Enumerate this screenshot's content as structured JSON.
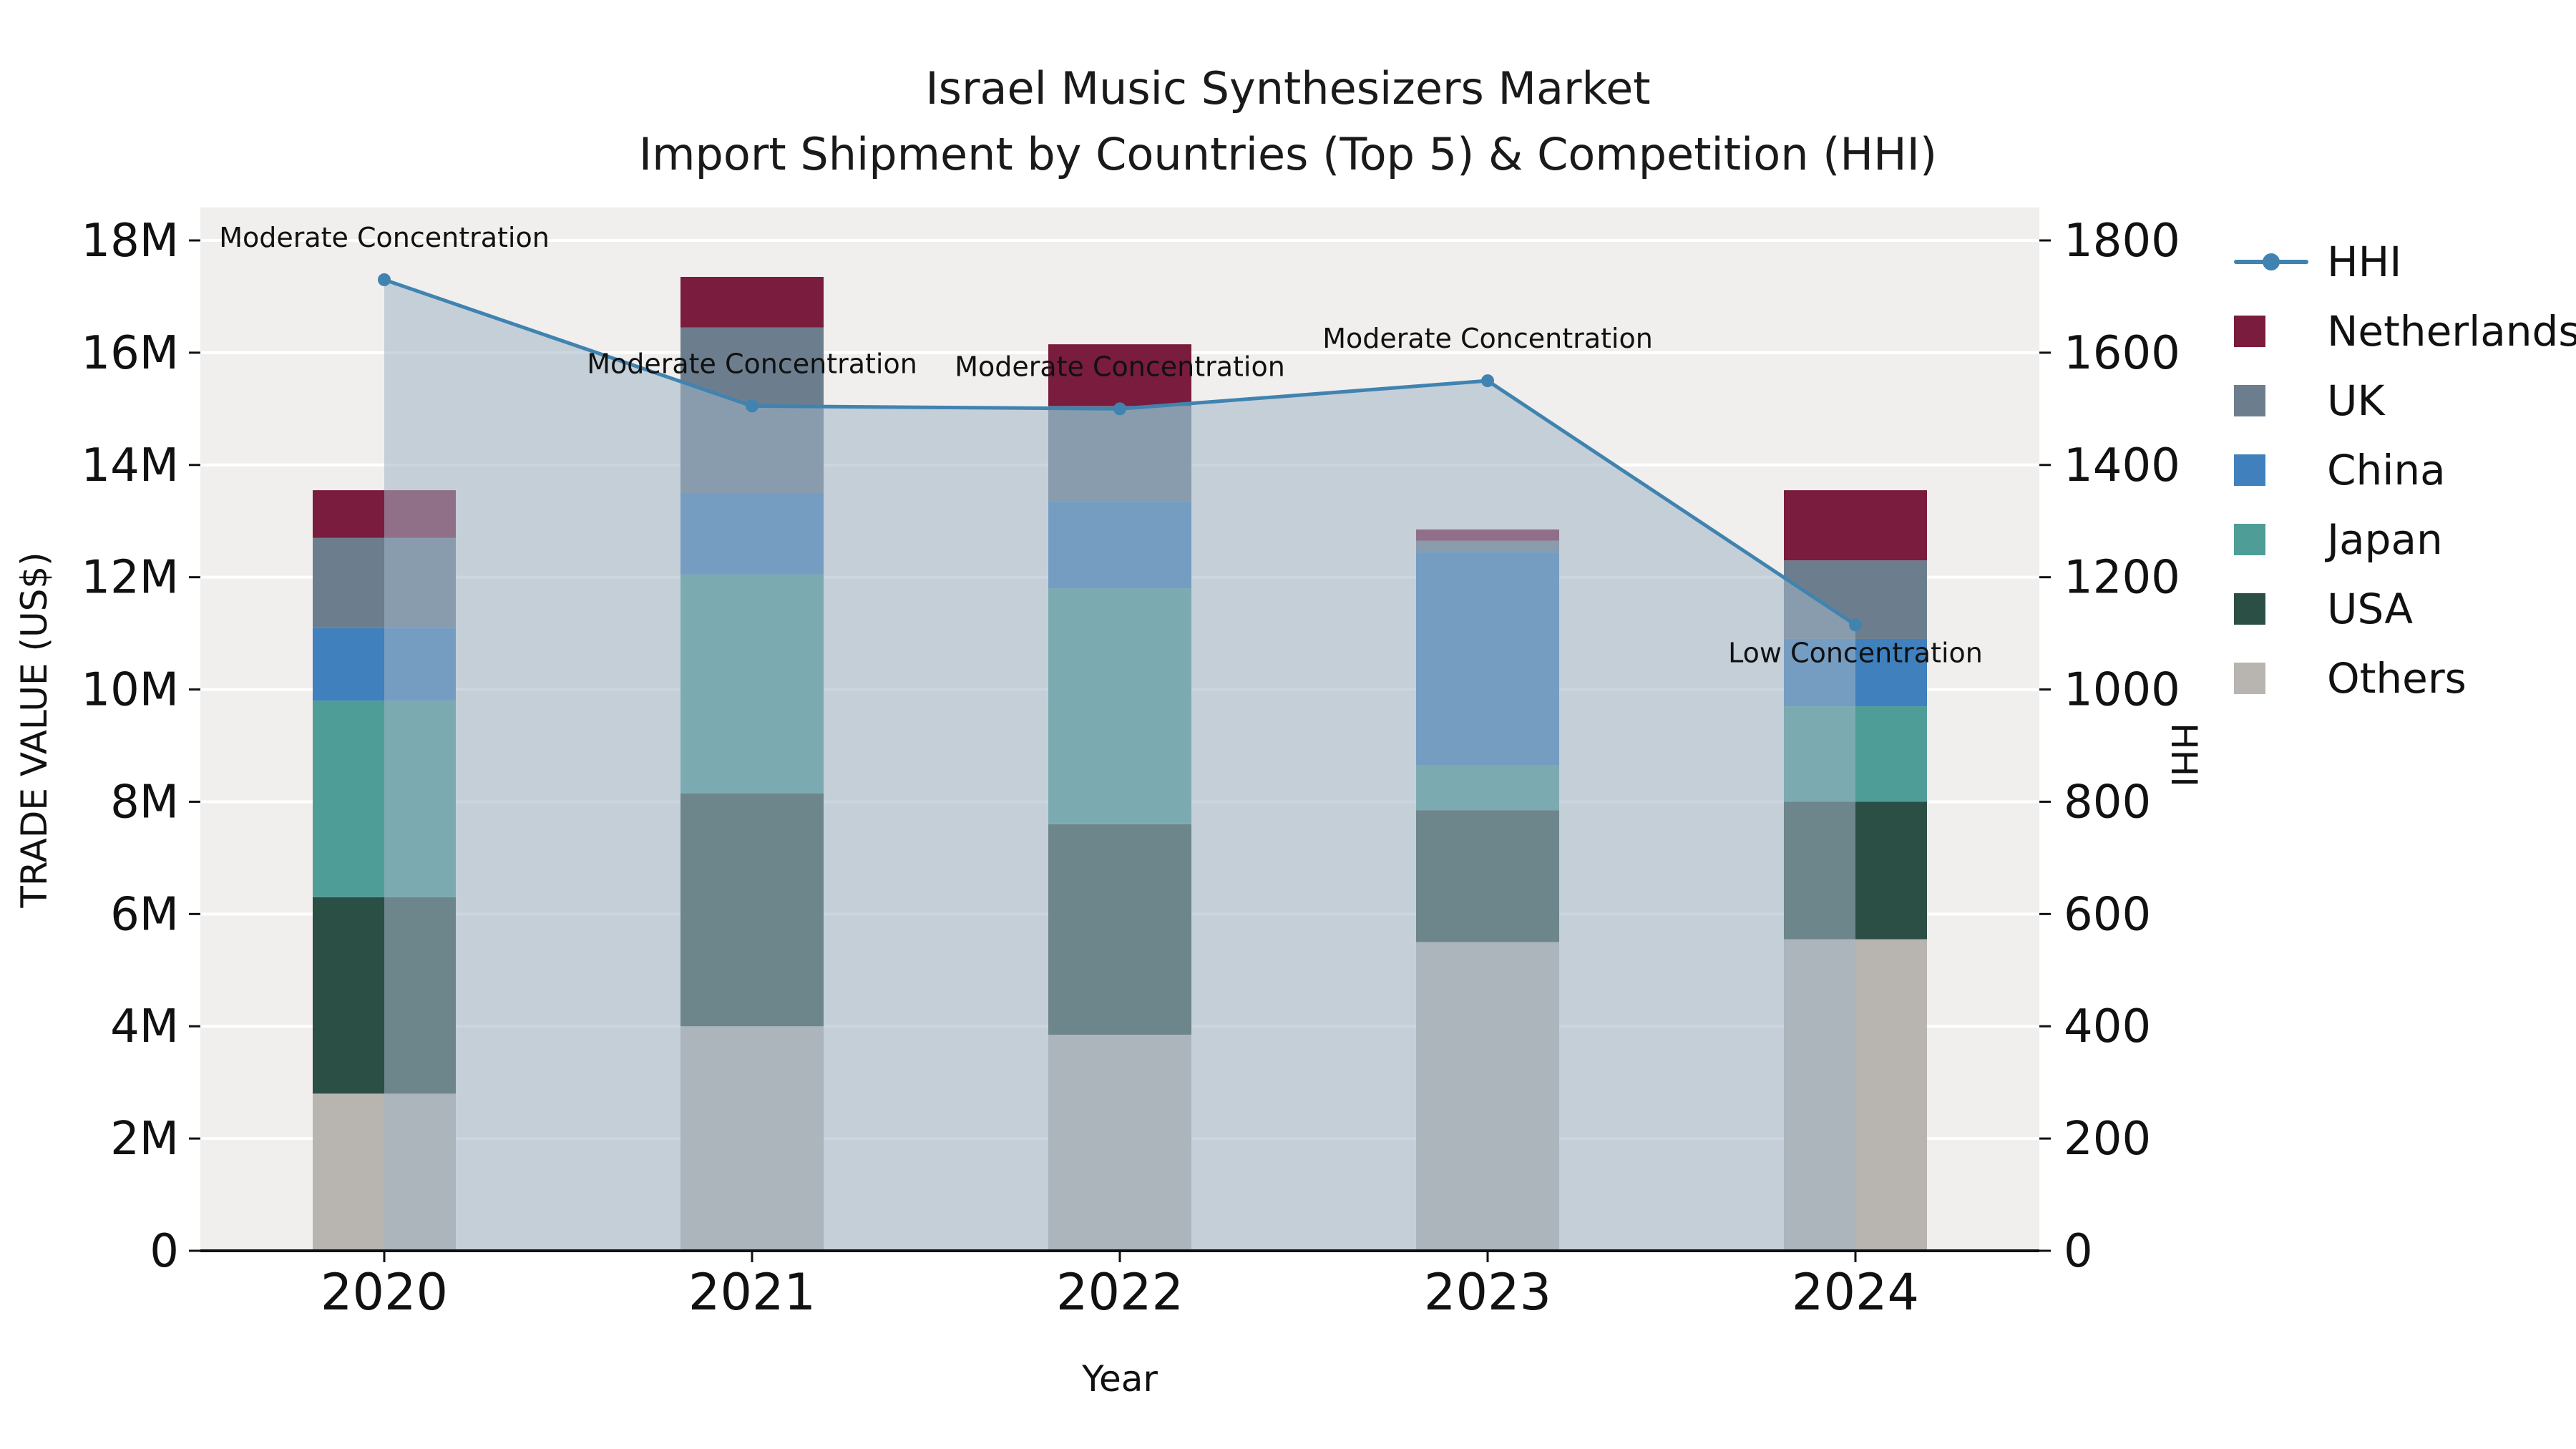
{
  "chart_data": {
    "type": "bar",
    "title": "Israel Music Synthesizers Market",
    "subtitle": "Import Shipment by Countries (Top 5) & Competition (HHI)",
    "plot_bg": "#f0efee",
    "grid_color": "#ffffff",
    "categories": [
      "2020",
      "2021",
      "2022",
      "2023",
      "2024"
    ],
    "values_unit": "M US$",
    "series": [
      {
        "name": "Others",
        "color": "#b8b4b0",
        "values": [
          2.8,
          4.0,
          3.85,
          5.5,
          5.55
        ]
      },
      {
        "name": "USA",
        "color": "#2c4f45",
        "values": [
          3.5,
          4.15,
          3.75,
          2.35,
          2.45
        ]
      },
      {
        "name": "Japan",
        "color": "#4f9d97",
        "values": [
          3.5,
          3.9,
          4.2,
          0.8,
          1.7
        ]
      },
      {
        "name": "China",
        "color": "#3f80bd",
        "values": [
          1.3,
          1.45,
          1.55,
          3.8,
          1.2
        ]
      },
      {
        "name": "UK",
        "color": "#6c7e8e",
        "values": [
          1.6,
          2.95,
          1.7,
          0.2,
          1.4
        ]
      },
      {
        "name": "Netherlands",
        "color": "#7a1c3d",
        "values": [
          0.85,
          0.9,
          1.1,
          0.2,
          1.25
        ]
      }
    ],
    "hhi_line": {
      "name": "HHI",
      "color": "#4183b0",
      "area_fill": "rgba(163,180,199,0.55)",
      "values": [
        1730,
        1505,
        1500,
        1550,
        1115
      ]
    },
    "annotations": [
      {
        "year": "2020",
        "text": "Moderate Concentration",
        "position": "above"
      },
      {
        "year": "2021",
        "text": "Moderate Concentration",
        "position": "above"
      },
      {
        "year": "2022",
        "text": "Moderate Concentration",
        "position": "above"
      },
      {
        "year": "2023",
        "text": "Moderate Concentration",
        "position": "above"
      },
      {
        "year": "2024",
        "text": "Low Concentration",
        "position": "below"
      }
    ],
    "x": {
      "title": "Year"
    },
    "y_left": {
      "title": "TRADE VALUE (US$)",
      "min": 0,
      "max": 18,
      "tick_labels": [
        "0",
        "2M",
        "4M",
        "6M",
        "8M",
        "10M",
        "12M",
        "14M",
        "16M",
        "18M"
      ]
    },
    "y_right": {
      "title": "HHI",
      "min": 0,
      "max": 1800,
      "tick_labels": [
        "0",
        "200",
        "400",
        "600",
        "800",
        "1000",
        "1200",
        "1400",
        "1600",
        "1800"
      ]
    },
    "legend": [
      {
        "name": "HHI",
        "color": "#4183b0",
        "type": "line"
      },
      {
        "name": "Netherlands",
        "color": "#7a1c3d",
        "type": "swatch"
      },
      {
        "name": "UK",
        "color": "#6c7e8e",
        "type": "swatch"
      },
      {
        "name": "China",
        "color": "#3f80bd",
        "type": "swatch"
      },
      {
        "name": "Japan",
        "color": "#4f9d97",
        "type": "swatch"
      },
      {
        "name": "USA",
        "color": "#2c4f45",
        "type": "swatch"
      },
      {
        "name": "Others",
        "color": "#b8b4b0",
        "type": "swatch"
      }
    ]
  }
}
